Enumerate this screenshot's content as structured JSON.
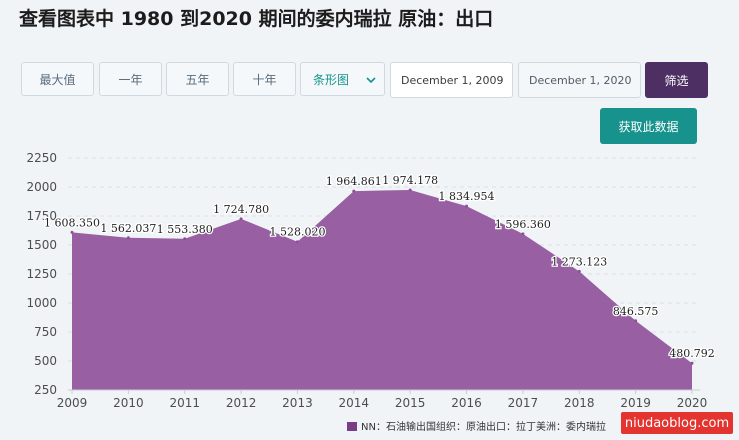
{
  "page": {
    "title": "查看图表中 1980 到2020 期间的委内瑞拉 原油：出口"
  },
  "controls": {
    "range_buttons": [
      "最大值",
      "一年",
      "五年",
      "十年"
    ],
    "chart_type_select": "条形图",
    "start_date": "December 1, 2009",
    "end_date": "December 1, 2020",
    "filter_label": "筛选",
    "get_data_label": "获取此数据"
  },
  "watermark": "niudaoblog.com",
  "colors": {
    "area_fill": "#8e4f98",
    "primary_button": "#4e2f63",
    "accent": "#17928c"
  },
  "chart_data": {
    "type": "area",
    "x": [
      "2009",
      "2010",
      "2011",
      "2012",
      "2013",
      "2014",
      "2015",
      "2016",
      "2017",
      "2018",
      "2019",
      "2020"
    ],
    "series": [
      {
        "name": "NN：石油输出国组织：原油出口：拉丁美洲：委内瑞拉",
        "values": [
          1608.35,
          1562.037,
          1553.38,
          1724.78,
          1528.02,
          1964.861,
          1974.178,
          1834.954,
          1596.36,
          1273.123,
          846.575,
          480.792
        ],
        "labels": [
          "1 608.350",
          "1 562.037",
          "1 553.380",
          "1 724.780",
          "1 528.020",
          "1 964.861",
          "1 974.178",
          "1 834.954",
          "1 596.360",
          "1 273.123",
          "846.575",
          "480.792"
        ]
      }
    ],
    "yticks": [
      "250",
      "500",
      "750",
      "1000",
      "1250",
      "1500",
      "1750",
      "2000",
      "2250"
    ],
    "ylim": [
      250,
      2250
    ],
    "grid": true,
    "legend": "bottom-right"
  }
}
